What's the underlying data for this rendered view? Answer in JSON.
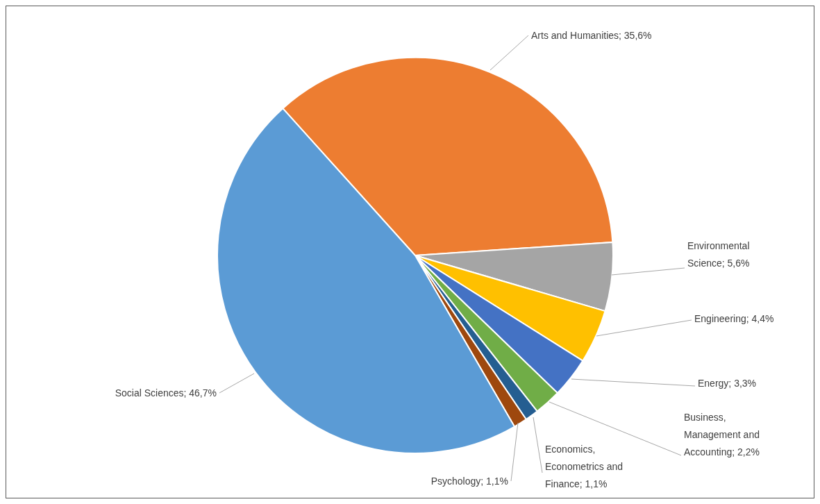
{
  "chart_data": {
    "type": "pie",
    "categories": [
      "Arts and Humanities",
      "Environmental Science",
      "Engineering",
      "Energy",
      "Business, Management and Accounting",
      "Economics, Econometrics and Finance",
      "Psychology",
      "Social Sciences"
    ],
    "values": [
      35.6,
      5.6,
      4.4,
      3.3,
      2.2,
      1.1,
      1.1,
      46.7
    ],
    "colors": [
      "#ed7d31",
      "#a5a5a5",
      "#ffc000",
      "#4472c4",
      "#70ad47",
      "#255e91",
      "#9e480e",
      "#5b9bd5"
    ],
    "value_labels": [
      "35,6%",
      "5,6%",
      "4,4%",
      "3,3%",
      "2,2%",
      "1,1%",
      "1,1%",
      "46,7%"
    ]
  }
}
